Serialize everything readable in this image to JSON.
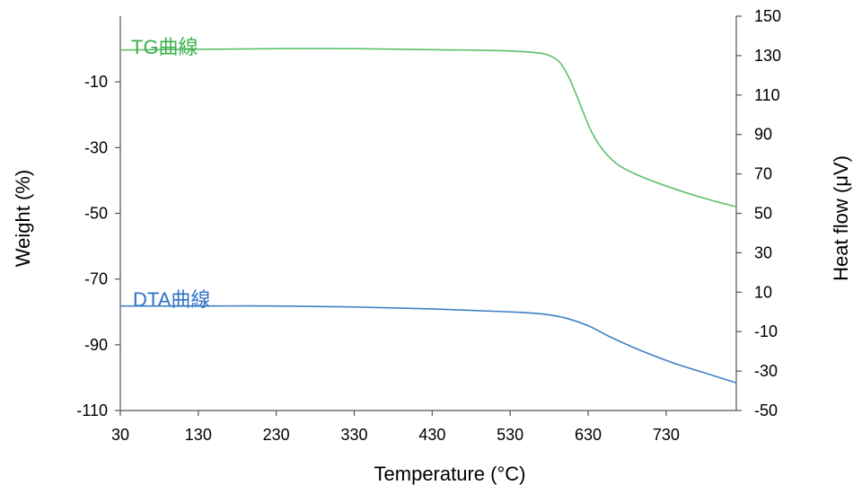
{
  "chart_data": {
    "type": "line",
    "xlabel": "Temperature (°C)",
    "ylabel_left": "Weight (%)",
    "ylabel_right": "Heat flow (μV)",
    "xlim": [
      30,
      820
    ],
    "ylim_left": [
      -110,
      10
    ],
    "ylim_right": [
      -50,
      150
    ],
    "x_ticks": [
      30,
      130,
      230,
      330,
      430,
      530,
      630,
      730
    ],
    "y_left_ticks": [
      -10,
      -30,
      -50,
      -70,
      -90,
      -110
    ],
    "y_right_ticks": [
      150,
      130,
      110,
      90,
      70,
      50,
      30,
      10,
      -10,
      -30,
      -50
    ],
    "grid": false,
    "series": [
      {
        "name": "TG曲線",
        "axis": "left",
        "color": "#5cc06a",
        "x": [
          30,
          130,
          230,
          330,
          430,
          500,
          540,
          570,
          585,
          595,
          605,
          615,
          625,
          635,
          650,
          670,
          700,
          740,
          780,
          820
        ],
        "y": [
          -0.3,
          -0.1,
          0.1,
          0.1,
          -0.2,
          -0.4,
          -0.7,
          -1.3,
          -2.5,
          -4.5,
          -8.5,
          -14,
          -20,
          -25.5,
          -31,
          -35.5,
          -39,
          -42.5,
          -45.5,
          -48
        ]
      },
      {
        "name": "DTA曲線",
        "axis": "right",
        "color": "#3f7fc8",
        "x": [
          30,
          130,
          230,
          330,
          430,
          530,
          570,
          600,
          630,
          660,
          700,
          740,
          780,
          820
        ],
        "y": [
          3,
          3,
          3,
          2.5,
          1.5,
          0,
          -1,
          -3,
          -7,
          -13,
          -20,
          -26,
          -31,
          -36
        ]
      }
    ]
  }
}
